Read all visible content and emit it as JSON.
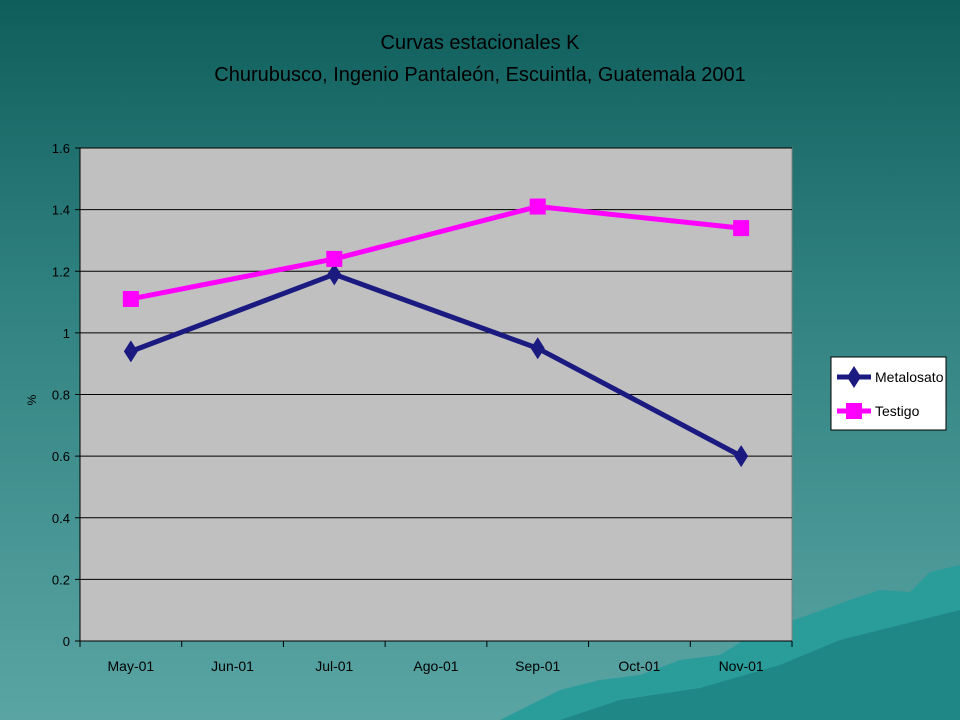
{
  "chart_data": {
    "type": "line",
    "title": "Curvas estacionales K",
    "subtitle": "Churubusco, Ingenio Pantaleón, Escuintla, Guatemala 2001",
    "ylabel": "%",
    "xlabel": "",
    "categories": [
      "May-01",
      "Jun-01",
      "Jul-01",
      "Ago-01",
      "Sep-01",
      "Oct-01",
      "Nov-01"
    ],
    "ylim": [
      0,
      1.6
    ],
    "yticks": [
      0,
      0.2,
      0.4,
      0.6,
      0.8,
      1,
      1.2,
      1.4,
      1.6
    ],
    "grid": true,
    "legend_position": "right",
    "series": [
      {
        "name": "Metalosato",
        "color": "#1a1a80",
        "marker": "diamond",
        "points": [
          {
            "category": "May-01",
            "value": 0.94
          },
          {
            "category": "Jul-01",
            "value": 1.19
          },
          {
            "category": "Sep-01",
            "value": 0.95
          },
          {
            "category": "Nov-01",
            "value": 0.6
          }
        ]
      },
      {
        "name": "Testigo",
        "color": "#ff00ff",
        "marker": "square",
        "points": [
          {
            "category": "May-01",
            "value": 1.11
          },
          {
            "category": "Jul-01",
            "value": 1.24
          },
          {
            "category": "Sep-01",
            "value": 1.41
          },
          {
            "category": "Nov-01",
            "value": 1.34
          }
        ]
      }
    ]
  },
  "colors": {
    "plot_background": "#c0c0c0",
    "gridline": "#000000"
  }
}
